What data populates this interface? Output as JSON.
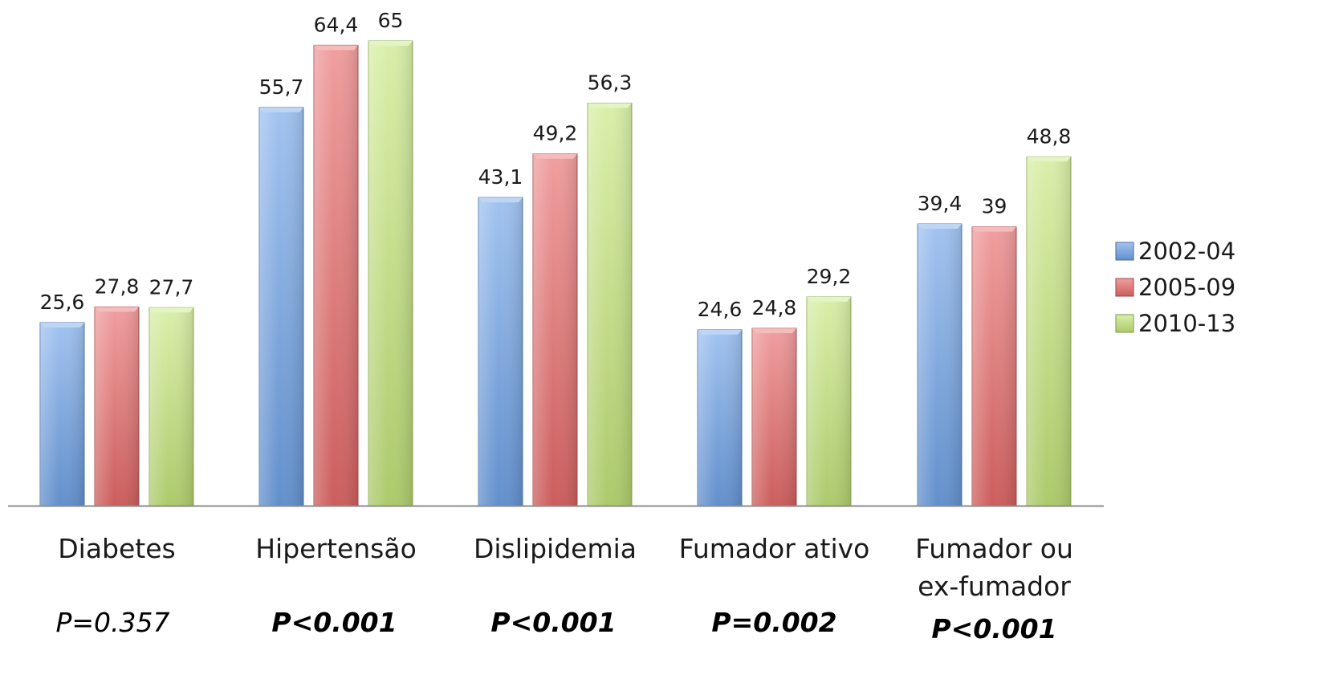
{
  "chart_data": {
    "type": "bar",
    "categories": [
      [
        "Diabetes"
      ],
      [
        "Hipertensão"
      ],
      [
        "Dislipidemia"
      ],
      [
        "Fumador ativo"
      ],
      [
        "Fumador ou",
        "ex-fumador"
      ]
    ],
    "series": [
      {
        "name": "2002-04",
        "values": [
          25.6,
          55.7,
          43.1,
          24.6,
          39.4
        ],
        "labels": [
          "25,6",
          "55,7",
          "43,1",
          "24,6",
          "39,4"
        ],
        "color": "#6FA3E8"
      },
      {
        "name": "2005-09",
        "values": [
          27.8,
          64.4,
          49.2,
          24.8,
          39.0
        ],
        "labels": [
          "27,8",
          "64,4",
          "49,2",
          "24,8",
          "39"
        ],
        "color": "#E86A6A"
      },
      {
        "name": "2010-13",
        "values": [
          27.7,
          65.0,
          56.3,
          29.2,
          48.8
        ],
        "labels": [
          "27,7",
          "65",
          "56,3",
          "29,2",
          "48,8"
        ],
        "color": "#C5E67A"
      }
    ],
    "p_values": [
      {
        "text": "P=0.357",
        "bold": false
      },
      {
        "text": "P<0.001",
        "bold": true
      },
      {
        "text": "P<0.001",
        "bold": true
      },
      {
        "text": "P=0.002",
        "bold": true
      },
      {
        "text": "P<0.001",
        "bold": true
      }
    ],
    "ylim": [
      0,
      70
    ],
    "grid": false,
    "legend_position": "right",
    "title": "",
    "xlabel": "",
    "ylabel": ""
  }
}
